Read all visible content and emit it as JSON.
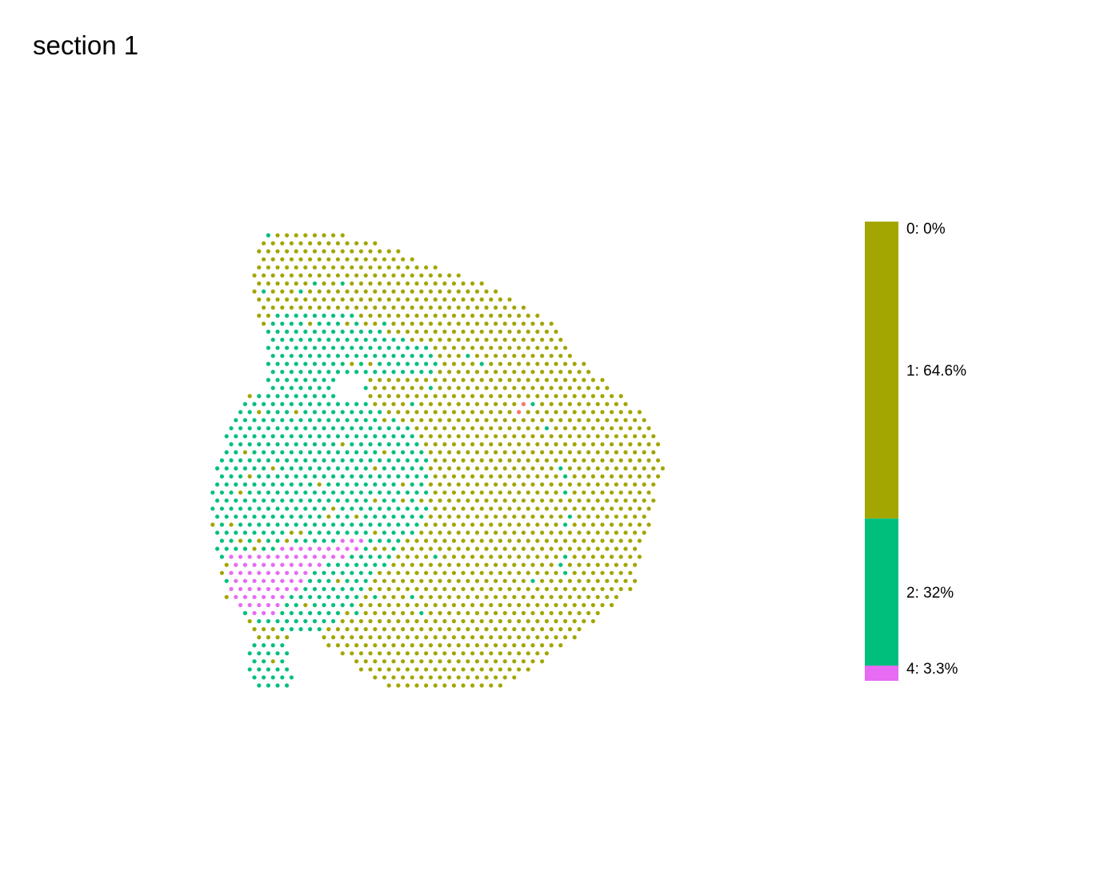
{
  "title": "section 1",
  "chart_data": {
    "type": "scatter",
    "title": "section 1",
    "xlabel": "",
    "ylabel": "",
    "grid": false,
    "axes_visible": false,
    "legend_position": "right",
    "legend_style": "stacked-proportion-bar",
    "legend": [
      {
        "name": "0: 0%",
        "share": 0.0,
        "color": "#F8766D"
      },
      {
        "name": "1: 64.6%",
        "share": 64.6,
        "color": "#A3A500"
      },
      {
        "name": "2: 32%",
        "share": 32.0,
        "color": "#00BF7D"
      },
      {
        "name": "4: 3.3%",
        "share": 3.3,
        "color": "#E76BF3"
      }
    ],
    "categories": [
      "0",
      "1",
      "2",
      "4"
    ]
  }
}
